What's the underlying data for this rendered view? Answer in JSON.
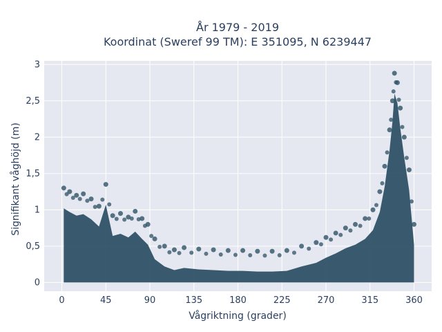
{
  "chart_data": {
    "type": "scatter",
    "title_line1": "År 1979 - 2019",
    "title_line2": "Koordinat (Sweref 99 TM): E 351095, N 6239447",
    "xlabel": "Vågriktning (grader)",
    "ylabel": "Signifikant våghöjd (m)",
    "xlim": [
      -18,
      378
    ],
    "ylim": [
      -0.12,
      3.05
    ],
    "x_ticks": [
      0,
      45,
      90,
      135,
      180,
      225,
      270,
      315,
      360
    ],
    "x_tick_labels": [
      "0",
      "45",
      "90",
      "135",
      "180",
      "225",
      "270",
      "315",
      "360"
    ],
    "y_ticks": [
      0,
      0.5,
      1,
      1.5,
      2,
      2.5,
      3
    ],
    "y_tick_labels": [
      "0",
      "0,5",
      "1",
      "1,5",
      "2",
      "2,5",
      "3"
    ],
    "grid": true,
    "marker_color": "#2f5266",
    "background_color": "#e5e8f0",
    "series": [
      {
        "x": [
          2,
          8,
          15,
          22,
          30,
          38,
          45,
          52,
          60,
          68,
          75,
          82,
          88,
          95,
          105,
          115,
          125,
          140,
          155,
          170,
          185,
          200,
          215,
          230,
          245,
          260,
          270,
          280,
          290,
          300,
          310,
          318,
          325,
          330,
          335,
          338,
          340,
          343,
          346,
          350,
          355,
          360
        ],
        "y": [
          1.3,
          1.25,
          1.2,
          1.22,
          1.15,
          1.05,
          1.35,
          0.92,
          0.95,
          0.9,
          0.98,
          0.88,
          0.8,
          0.6,
          0.5,
          0.45,
          0.48,
          0.46,
          0.45,
          0.44,
          0.44,
          0.43,
          0.43,
          0.44,
          0.5,
          0.55,
          0.62,
          0.68,
          0.75,
          0.8,
          0.88,
          1.0,
          1.25,
          1.6,
          2.1,
          2.5,
          2.88,
          2.75,
          2.4,
          2.0,
          1.55,
          0.8
        ]
      }
    ]
  }
}
